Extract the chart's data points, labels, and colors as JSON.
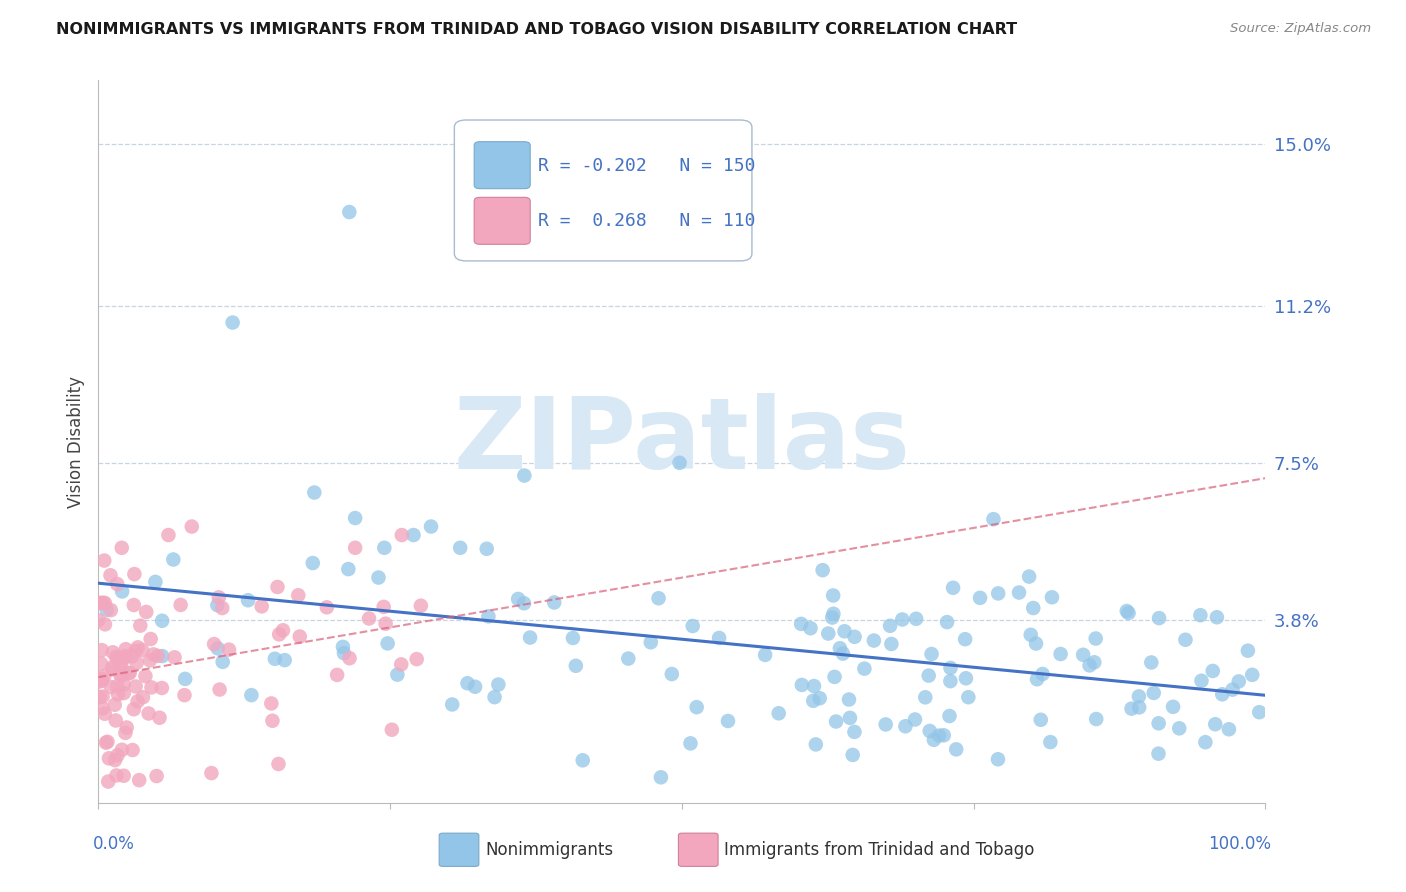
{
  "title": "NONIMMIGRANTS VS IMMIGRANTS FROM TRINIDAD AND TOBAGO VISION DISABILITY CORRELATION CHART",
  "source": "Source: ZipAtlas.com",
  "ylabel": "Vision Disability",
  "y_ticks": [
    0.038,
    0.075,
    0.112,
    0.15
  ],
  "y_tick_labels": [
    "3.8%",
    "7.5%",
    "11.2%",
    "15.0%"
  ],
  "x_range": [
    0.0,
    1.0
  ],
  "y_range": [
    -0.005,
    0.165
  ],
  "blue_color": "#93C5E8",
  "pink_color": "#F2A7BE",
  "blue_line_color": "#4472C4",
  "pink_line_color": "#D9607A",
  "grid_color": "#C8D4E0",
  "background_color": "#FFFFFF",
  "watermark_text": "ZIPatlas",
  "watermark_color": "#D8E8F5",
  "legend_blue_R": "-0.202",
  "legend_blue_N": "150",
  "legend_pink_R": " 0.268",
  "legend_pink_N": "110",
  "tick_color": "#4472C4",
  "title_color": "#1A1A1A",
  "source_color": "#888888",
  "axis_label_color": "#444444"
}
